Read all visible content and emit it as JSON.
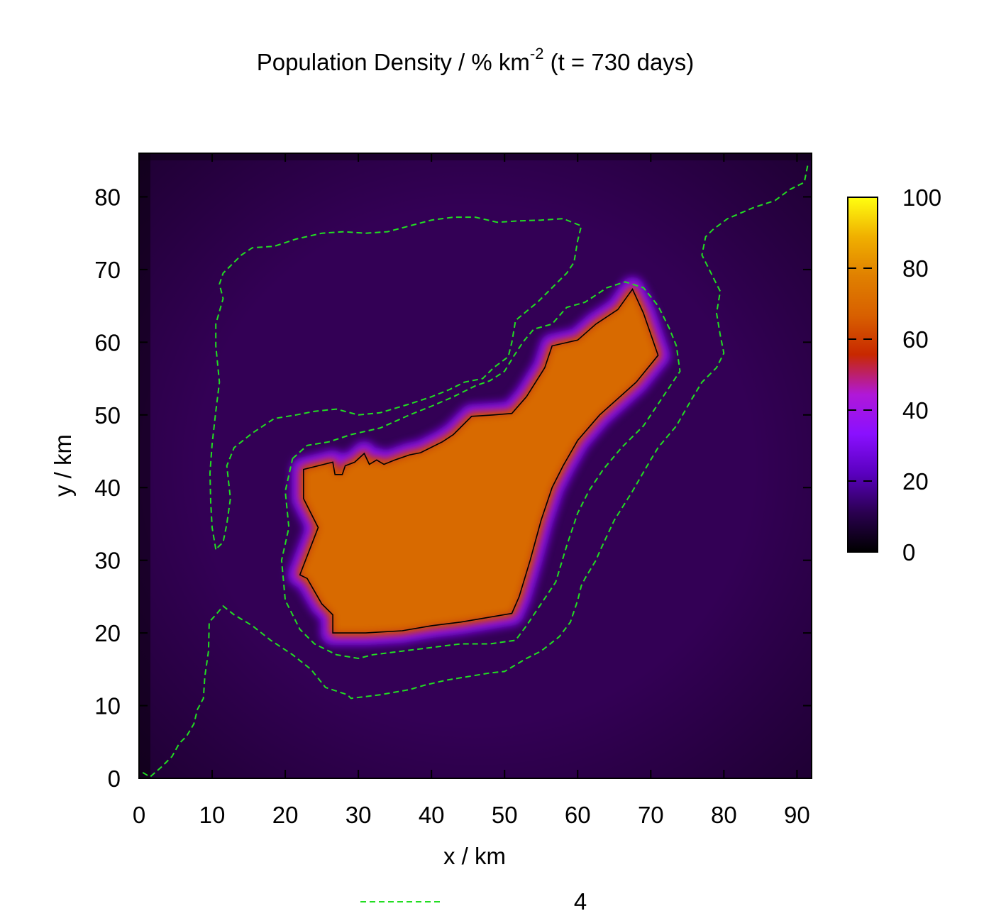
{
  "chart_data": {
    "type": "heatmap",
    "title_main": "Population Density / % km",
    "title_sup": "-2",
    "title_tail": " (t = 730 days)",
    "xlabel": "x / km",
    "ylabel": "y / km",
    "xlim": [
      0,
      92
    ],
    "ylim": [
      0,
      86
    ],
    "xticks": [
      0,
      10,
      20,
      30,
      40,
      50,
      60,
      70,
      80,
      90
    ],
    "yticks": [
      0,
      10,
      20,
      30,
      40,
      50,
      60,
      70,
      80
    ],
    "colorbar": {
      "range": [
        0,
        100
      ],
      "ticks": [
        0,
        20,
        40,
        60,
        80,
        100
      ],
      "palette": [
        "#000000",
        "#2a0050",
        "#5a00c0",
        "#8a10ff",
        "#b018d8",
        "#c82800",
        "#d86000",
        "#e08000",
        "#f0b000",
        "#ffff10"
      ]
    },
    "background_color": "#330055",
    "legend_entry": "4",
    "legend_color": "#22dd22",
    "contour_solid": [
      [
        22.5,
        42.5
      ],
      [
        26.5,
        43.5
      ],
      [
        26.8,
        41.8
      ],
      [
        27.8,
        41.8
      ],
      [
        28.2,
        43.0
      ],
      [
        29.5,
        43.5
      ],
      [
        30.8,
        44.7
      ],
      [
        31.5,
        43.2
      ],
      [
        32.5,
        43.8
      ],
      [
        33.5,
        43.2
      ],
      [
        35,
        43.8
      ],
      [
        37,
        44.5
      ],
      [
        38.5,
        44.8
      ],
      [
        41.5,
        46.3
      ],
      [
        43,
        47.3
      ],
      [
        45.5,
        49.8
      ],
      [
        48.5,
        50.0
      ],
      [
        51,
        50.2
      ],
      [
        53,
        52.5
      ],
      [
        55.5,
        56.5
      ],
      [
        56.5,
        59.5
      ],
      [
        60,
        60.3
      ],
      [
        62.5,
        62.5
      ],
      [
        65.5,
        64.5
      ],
      [
        67.5,
        67.3
      ],
      [
        69,
        64.0
      ],
      [
        71,
        58.2
      ],
      [
        68,
        54.5
      ],
      [
        63,
        50.0
      ],
      [
        60,
        46.5
      ],
      [
        58,
        43.0
      ],
      [
        56.5,
        40.0
      ],
      [
        55,
        35.5
      ],
      [
        53.5,
        30.0
      ],
      [
        52,
        25.0
      ],
      [
        51,
        22.7
      ],
      [
        44,
        21.5
      ],
      [
        40,
        21.0
      ],
      [
        36,
        20.3
      ],
      [
        31,
        20.0
      ],
      [
        26.5,
        20.0
      ],
      [
        26.5,
        22.5
      ],
      [
        25,
        24.0
      ],
      [
        23,
        27.5
      ],
      [
        22,
        28.0
      ],
      [
        24.5,
        34.5
      ],
      [
        22.5,
        38.5
      ],
      [
        22.5,
        42.5
      ]
    ],
    "contour_dashed": [
      [
        [
          0.5,
          0.8
        ],
        [
          1.5,
          0.2
        ],
        [
          3,
          1.5
        ],
        [
          4.5,
          3.0
        ],
        [
          5.5,
          4.8
        ],
        [
          6.5,
          5.8
        ],
        [
          7.5,
          7.5
        ],
        [
          8,
          9.5
        ],
        [
          8.8,
          11.0
        ],
        [
          9,
          14.0
        ],
        [
          9.5,
          17.5
        ],
        [
          9.6,
          21.5
        ],
        [
          10.5,
          22.5
        ],
        [
          11.5,
          23.7
        ],
        [
          13,
          22.5
        ],
        [
          15.5,
          21.0
        ],
        [
          18,
          19.0
        ],
        [
          21,
          17.0
        ],
        [
          23.5,
          15.0
        ],
        [
          25.5,
          12.5
        ],
        [
          28.5,
          11.5
        ],
        [
          29,
          11.0
        ],
        [
          33,
          11.5
        ],
        [
          37,
          12.2
        ],
        [
          39,
          12.8
        ],
        [
          42,
          13.5
        ],
        [
          45,
          14.0
        ],
        [
          48,
          14.5
        ],
        [
          50,
          14.7
        ],
        [
          53,
          16.5
        ],
        [
          55,
          17.5
        ],
        [
          57.5,
          19.5
        ],
        [
          59,
          21.5
        ],
        [
          60,
          24.5
        ],
        [
          60.5,
          26.5
        ],
        [
          61,
          27.5
        ],
        [
          62.5,
          30.0
        ],
        [
          63,
          31.2
        ],
        [
          65,
          35.5
        ],
        [
          67.5,
          39.5
        ],
        [
          69.5,
          43.0
        ],
        [
          71,
          45.5
        ],
        [
          73.5,
          48.5
        ],
        [
          75.5,
          52.0
        ],
        [
          77,
          54.5
        ],
        [
          79,
          56.5
        ],
        [
          80,
          58.5
        ],
        [
          79.5,
          61.0
        ],
        [
          79,
          64.0
        ],
        [
          79.5,
          67.0
        ],
        [
          78.5,
          69.0
        ],
        [
          77,
          72.0
        ],
        [
          77.5,
          74.5
        ],
        [
          78.5,
          75.5
        ],
        [
          80.5,
          77.0
        ],
        [
          84,
          78.5
        ],
        [
          87,
          79.5
        ],
        [
          89,
          81.0
        ],
        [
          91,
          82.0
        ],
        [
          91.5,
          84.5
        ]
      ],
      [
        [
          10.5,
          31.5
        ],
        [
          10,
          34.5
        ],
        [
          9.8,
          38.0
        ],
        [
          9.7,
          42.0
        ],
        [
          10,
          46.0
        ],
        [
          10.5,
          50.5
        ],
        [
          11,
          54.5
        ],
        [
          10.5,
          59.5
        ],
        [
          10.5,
          62.5
        ],
        [
          11.5,
          66.0
        ],
        [
          11,
          68.0
        ],
        [
          11.5,
          69.5
        ],
        [
          12.5,
          70.5
        ],
        [
          14,
          72.0
        ],
        [
          15.5,
          73.0
        ],
        [
          18.5,
          73.2
        ],
        [
          21.5,
          74.2
        ],
        [
          25,
          75.0
        ],
        [
          28,
          75.2
        ],
        [
          31,
          75.0
        ],
        [
          34,
          75.2
        ],
        [
          37,
          76.0
        ],
        [
          40,
          76.8
        ],
        [
          43,
          77.2
        ],
        [
          46,
          77.2
        ],
        [
          49,
          76.5
        ],
        [
          52,
          76.7
        ],
        [
          55,
          76.8
        ],
        [
          58,
          77.0
        ],
        [
          60.5,
          76.0
        ],
        [
          60,
          74.0
        ],
        [
          59.5,
          71.0
        ],
        [
          58.5,
          69.5
        ],
        [
          56.5,
          67.5
        ],
        [
          54.5,
          65.5
        ],
        [
          51.5,
          63.0
        ],
        [
          51,
          60.0
        ],
        [
          50.5,
          58.0
        ],
        [
          48.5,
          56.5
        ],
        [
          47,
          55.0
        ],
        [
          44.5,
          54.5
        ],
        [
          42.5,
          53.5
        ],
        [
          40,
          52.5
        ],
        [
          37,
          51.5
        ],
        [
          33,
          50.3
        ],
        [
          30,
          50.0
        ],
        [
          27,
          50.8
        ],
        [
          24,
          50.5
        ],
        [
          21.5,
          50.0
        ],
        [
          18.5,
          49.5
        ],
        [
          15.5,
          47.5
        ],
        [
          13,
          45.5
        ],
        [
          12,
          43.0
        ],
        [
          12.5,
          38.5
        ],
        [
          12,
          35.0
        ],
        [
          11.5,
          32.5
        ],
        [
          10.5,
          31.5
        ]
      ],
      [
        [
          21,
          44.0
        ],
        [
          23,
          45.8
        ],
        [
          26,
          46.3
        ],
        [
          29,
          47.3
        ],
        [
          33,
          48.2
        ],
        [
          37,
          50.0
        ],
        [
          40,
          51.2
        ],
        [
          43,
          52.5
        ],
        [
          46,
          54.0
        ],
        [
          48,
          54.7
        ],
        [
          50,
          56.0
        ],
        [
          51.2,
          58.0
        ],
        [
          52.5,
          60.0
        ],
        [
          54,
          61.8
        ],
        [
          56.5,
          62.5
        ],
        [
          58.5,
          64.8
        ],
        [
          61,
          65.5
        ],
        [
          64,
          67.5
        ],
        [
          66.5,
          68.3
        ],
        [
          69,
          67.5
        ],
        [
          71,
          65.0
        ],
        [
          72.5,
          62.0
        ],
        [
          73.5,
          59.5
        ],
        [
          74,
          56.0
        ],
        [
          72,
          53.0
        ],
        [
          69,
          48.5
        ],
        [
          66,
          45.5
        ],
        [
          63.5,
          42.5
        ],
        [
          61.5,
          39.5
        ],
        [
          60,
          36.5
        ],
        [
          58.5,
          32.0
        ],
        [
          57,
          27.0
        ],
        [
          55,
          24.0
        ],
        [
          53,
          21.0
        ],
        [
          51.5,
          19.0
        ],
        [
          48,
          18.5
        ],
        [
          44,
          18.5
        ],
        [
          40,
          18.0
        ],
        [
          36,
          17.5
        ],
        [
          32,
          17.0
        ],
        [
          30,
          16.5
        ],
        [
          27,
          17.0
        ],
        [
          24,
          18.5
        ],
        [
          22,
          20.5
        ],
        [
          20,
          24.5
        ],
        [
          19.5,
          30.0
        ],
        [
          20.5,
          34.5
        ],
        [
          20,
          39.5
        ],
        [
          21,
          44.0
        ]
      ]
    ]
  }
}
